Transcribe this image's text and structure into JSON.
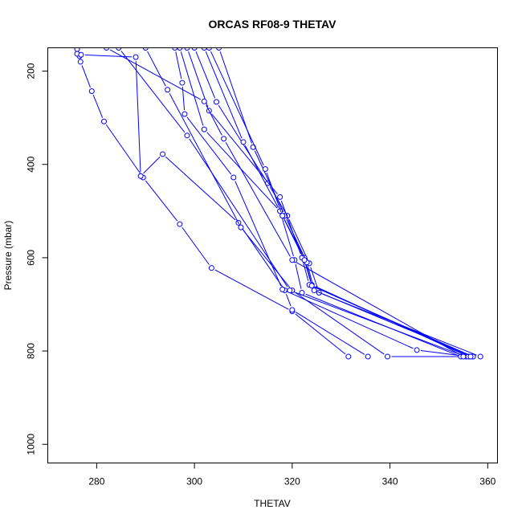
{
  "chart_data": {
    "type": "line",
    "title": "ORCAS RF08-9 THETAV",
    "xlabel": "THETAV",
    "ylabel": "Pressure (mbar)",
    "xlim": [
      270,
      362
    ],
    "ylim": [
      1040,
      150
    ],
    "y_reversed": true,
    "xticks": [
      280,
      300,
      320,
      340,
      360
    ],
    "yticks": [
      200,
      400,
      600,
      800,
      1000
    ],
    "grid": false,
    "color": "#0000ff",
    "series": [
      {
        "points": [
          [
            276.0,
            153
          ],
          [
            276.5,
            168
          ],
          [
            276.7,
            180
          ],
          [
            279.0,
            243
          ],
          [
            281.5,
            308
          ],
          [
            289.5,
            428
          ],
          [
            297.0,
            528
          ],
          [
            303.5,
            622
          ],
          [
            320.0,
            715
          ],
          [
            331.5,
            812
          ]
        ]
      },
      {
        "points": [
          [
            276.0,
            163
          ],
          [
            276.8,
            165
          ],
          [
            288.0,
            170
          ],
          [
            289.0,
            425
          ],
          [
            293.5,
            378
          ],
          [
            309.0,
            525
          ],
          [
            318.5,
            670
          ],
          [
            320.0,
            712
          ],
          [
            335.5,
            812
          ]
        ]
      },
      {
        "points": [
          [
            290.0,
            150
          ],
          [
            294.5,
            240
          ],
          [
            309.5,
            535
          ],
          [
            320.0,
            670
          ],
          [
            339.5,
            812
          ],
          [
            356.5,
            812
          ]
        ]
      },
      {
        "points": [
          [
            296.0,
            150
          ],
          [
            297.5,
            225
          ],
          [
            298.0,
            292
          ],
          [
            308.0,
            428
          ],
          [
            318.0,
            668
          ],
          [
            345.5,
            798
          ],
          [
            356.0,
            812
          ]
        ]
      },
      {
        "points": [
          [
            297.0,
            150
          ],
          [
            302.0,
            325
          ],
          [
            317.5,
            500
          ],
          [
            320.5,
            605
          ],
          [
            322.0,
            675
          ],
          [
            354.5,
            812
          ]
        ]
      },
      {
        "points": [
          [
            300.0,
            150
          ],
          [
            304.5,
            266
          ],
          [
            315.0,
            440
          ],
          [
            319.0,
            510
          ],
          [
            323.5,
            612
          ],
          [
            325.5,
            675
          ],
          [
            358.5,
            812
          ]
        ]
      },
      {
        "points": [
          [
            284.5,
            150
          ],
          [
            298.5,
            338
          ],
          [
            319.5,
            670
          ],
          [
            355.5,
            812
          ]
        ]
      },
      {
        "points": [
          [
            302.0,
            150
          ],
          [
            310.0,
            352
          ],
          [
            317.5,
            500
          ],
          [
            322.5,
            600
          ],
          [
            324.0,
            658
          ],
          [
            356.0,
            812
          ]
        ]
      },
      {
        "points": [
          [
            305.0,
            150
          ],
          [
            312.0,
            363
          ],
          [
            318.5,
            510
          ],
          [
            323.0,
            610
          ],
          [
            324.5,
            670
          ],
          [
            357.0,
            812
          ]
        ]
      },
      {
        "points": [
          [
            298.5,
            150
          ],
          [
            303.0,
            285
          ],
          [
            317.5,
            470
          ],
          [
            322.0,
            600
          ],
          [
            323.5,
            658
          ],
          [
            357.0,
            812
          ]
        ]
      },
      {
        "points": [
          [
            303.0,
            150
          ],
          [
            314.5,
            410
          ],
          [
            318.0,
            510
          ],
          [
            322.5,
            605
          ],
          [
            324.0,
            660
          ],
          [
            356.5,
            812
          ]
        ]
      },
      {
        "points": [
          [
            282.0,
            150
          ],
          [
            302.0,
            265
          ],
          [
            306.0,
            345
          ],
          [
            320.0,
            605
          ],
          [
            355.0,
            812
          ]
        ]
      }
    ]
  }
}
